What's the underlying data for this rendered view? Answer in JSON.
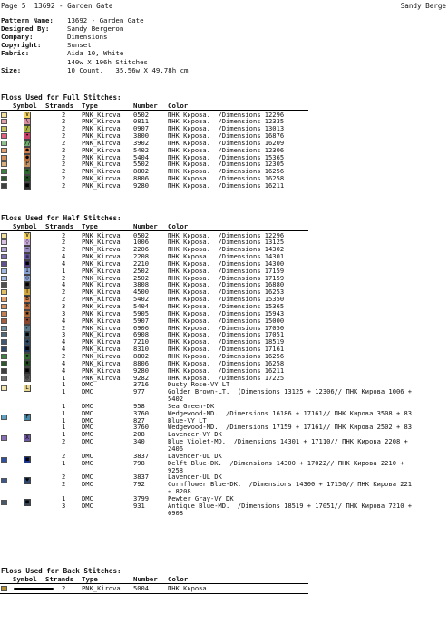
{
  "header": {
    "left": "Page 5  13692 - Garden Gate",
    "right": "Sandy Berge"
  },
  "meta": [
    {
      "label": "Pattern Name:",
      "value": "13692 - Garden Gate"
    },
    {
      "label": "Designed By:",
      "value": "Sandy Bergeron"
    },
    {
      "label": "Company:",
      "value": "Dimensions"
    },
    {
      "label": "Copyright:",
      "value": "Sunset"
    },
    {
      "label": "Fabric:",
      "value": "Aida 10, White"
    },
    {
      "label": "",
      "value": "140w X 196h Stitches"
    },
    {
      "label": "Size:",
      "value": "10 Count,   35.56w X 49.78h cm"
    }
  ],
  "columns": {
    "symbol": "Symbol",
    "strands": "Strands",
    "type": "Type",
    "number": "Number",
    "color": "Color"
  },
  "full": {
    "title": "Floss Used for Full Stitches:",
    "rows": [
      {
        "sw": "#f0e0a0",
        "sym": "#f0d060",
        "g": "V",
        "strands": "2",
        "type": "PNK_Kirova",
        "number": "0502",
        "color": "ПНК Кирова.  /Dimensions 12296"
      },
      {
        "sw": "#e0a0a8",
        "sym": "#d890a0",
        "g": "\\",
        "strands": "2",
        "type": "PNK_Kirova",
        "number": "0811",
        "color": "ПНК Кирова.  /Dimensions 12335"
      },
      {
        "sw": "#c0c060",
        "sym": "#a8b040",
        "g": "/",
        "strands": "2",
        "type": "PNK_Kirova",
        "number": "0907",
        "color": "ПНК Кирова.  /Dimensions 13013"
      },
      {
        "sw": "#e06080",
        "sym": "#c84068",
        "g": "•",
        "strands": "2",
        "type": "PNK_Kirova",
        "number": "3800",
        "color": "ПНК Кирова.  /Dimensions 16876"
      },
      {
        "sw": "#90c090",
        "sym": "#70a870",
        "g": "//",
        "strands": "2",
        "type": "PNK_Kirova",
        "number": "3902",
        "color": "ПНК Кирова.  /Dimensions 16209"
      },
      {
        "sw": "#e0a070",
        "sym": "#d08050",
        "g": "●",
        "strands": "2",
        "type": "PNK_Kirova",
        "number": "5402",
        "color": "ПНК Кирова.  /Dimensions 12306"
      },
      {
        "sw": "#d09060",
        "sym": "#b87040",
        "g": "●",
        "strands": "2",
        "type": "PNK_Kirova",
        "number": "5404",
        "color": "ПНК Кирова.  /Dimensions 15365"
      },
      {
        "sw": "#d8b080",
        "sym": "#c09060",
        "g": "P",
        "strands": "2",
        "type": "PNK_Kirova",
        "number": "5502",
        "color": "ПНК Кирова.  /Dimensions 12305"
      },
      {
        "sw": "#408040",
        "sym": "#306830",
        "g": "+",
        "strands": "2",
        "type": "PNK_Kirova",
        "number": "8802",
        "color": "ПНК Кирова.  /Dimensions 16256"
      },
      {
        "sw": "#305830",
        "sym": "#204820",
        "g": "•",
        "strands": "2",
        "type": "PNK_Kirova",
        "number": "8806",
        "color": "ПНК Кирова.  /Dimensions 16258"
      },
      {
        "sw": "#404040",
        "sym": "#303030",
        "g": "■",
        "strands": "2",
        "type": "PNK_Kirova",
        "number": "9280",
        "color": "ПНК Кирова.  /Dimensions 16211"
      }
    ]
  },
  "half": {
    "title": "Floss Used for Half Stitches:",
    "rows": [
      {
        "sw": "#f0e0a0",
        "sym": "#f0d060",
        "g": "V",
        "strands": "2",
        "type": "PNK_Kirova",
        "number": "0502",
        "color": "ПНК Кирова.  /Dimensions 12296"
      },
      {
        "sw": "#d8c0e0",
        "sym": "#c8a8d8",
        "g": "◊",
        "strands": "2",
        "type": "PNK_Kirova",
        "number": "1006",
        "color": "ПНК Кирова.  /Dimensions 13125"
      },
      {
        "sw": "#b0a0d0",
        "sym": "#9888c0",
        "g": "=",
        "strands": "2",
        "type": "PNK_Kirova",
        "number": "2206",
        "color": "ПНК Кирова.  /Dimensions 14302"
      },
      {
        "sw": "#8070b0",
        "sym": "#6858a0",
        "g": "≡",
        "strands": "4",
        "type": "PNK_Kirova",
        "number": "2208",
        "color": "ПНК Кирова.  /Dimensions 14301"
      },
      {
        "sw": "#605090",
        "sym": "#504080",
        "g": "■",
        "strands": "4",
        "type": "PNK_Kirova",
        "number": "2210",
        "color": "ПНК Кирова.  /Dimensions 14300"
      },
      {
        "sw": "#a0b8e0",
        "sym": "#88a0d0",
        "g": "I",
        "strands": "1",
        "type": "PNK_Kirova",
        "number": "2502",
        "color": "ПНК Кирова.  /Dimensions 17159"
      },
      {
        "sw": "#a0b8e0",
        "sym": "#88a0d0",
        "g": "○",
        "strands": "2",
        "type": "PNK_Kirova",
        "number": "2502",
        "color": "ПНК Кирова.  /Dimensions 17159"
      },
      {
        "sw": "#505050",
        "sym": "#404040",
        "g": "■",
        "strands": "4",
        "type": "PNK_Kirova",
        "number": "3808",
        "color": "ПНК Кирова.  /Dimensions 16880"
      },
      {
        "sw": "#e0c060",
        "sym": "#d0a840",
        "g": "T",
        "strands": "2",
        "type": "PNK_Kirova",
        "number": "4500",
        "color": "ПНК Кирова.  /Dimensions 16253"
      },
      {
        "sw": "#e0a070",
        "sym": "#d08050",
        "g": "B",
        "strands": "2",
        "type": "PNK_Kirova",
        "number": "5402",
        "color": "ПНК Кирова.  /Dimensions 15350"
      },
      {
        "sw": "#d09060",
        "sym": "#b87040",
        "g": "8",
        "strands": "3",
        "type": "PNK_Kirova",
        "number": "5404",
        "color": "ПНК Кирова.  /Dimensions 15365"
      },
      {
        "sw": "#c08050",
        "sym": "#a86838",
        "g": "✱",
        "strands": "3",
        "type": "PNK_Kirova",
        "number": "5905",
        "color": "ПНК Кирова.  /Dimensions 15943"
      },
      {
        "sw": "#a06040",
        "sym": "#884830",
        "g": "•",
        "strands": "4",
        "type": "PNK_Kirova",
        "number": "5907",
        "color": "ПНК Кирова.  /Dimensions 15000"
      },
      {
        "sw": "#7090a0",
        "sym": "#587888",
        "g": "✓",
        "strands": "2",
        "type": "PNK_Kirova",
        "number": "6906",
        "color": "ПНК Кирова.  /Dimensions 17050"
      },
      {
        "sw": "#506878",
        "sym": "#405868",
        "g": "■",
        "strands": "3",
        "type": "PNK_Kirova",
        "number": "6908",
        "color": "ПНК Кирова.  /Dimensions 17051"
      },
      {
        "sw": "#405870",
        "sym": "#304860",
        "g": "✚",
        "strands": "4",
        "type": "PNK_Kirova",
        "number": "7210",
        "color": "ПНК Кирова.  /Dimensions 18519"
      },
      {
        "sw": "#304868",
        "sym": "#203858",
        "g": "■",
        "strands": "4",
        "type": "PNK_Kirova",
        "number": "8310",
        "color": "ПНК Кирова.  /Dimensions 17161"
      },
      {
        "sw": "#408040",
        "sym": "#306830",
        "g": "▪",
        "strands": "2",
        "type": "PNK_Kirova",
        "number": "8802",
        "color": "ПНК Кирова.  /Dimensions 16256"
      },
      {
        "sw": "#305830",
        "sym": "#204820",
        "g": "♦",
        "strands": "4",
        "type": "PNK_Kirova",
        "number": "8806",
        "color": "ПНК Кирова.  /Dimensions 16258"
      },
      {
        "sw": "#404040",
        "sym": "#303030",
        "g": "■",
        "strands": "4",
        "type": "PNK_Kirova",
        "number": "9280",
        "color": "ПНК Кирова.  /Dimensions 16211"
      },
      {
        "sw": "#707070",
        "sym": "#606060",
        "g": "◎",
        "strands": "1",
        "type": "PNK_Kirova",
        "number": "9282",
        "color": "ПНК Кирова.  /Dimensions 17225"
      }
    ]
  },
  "blends": [
    {
      "sw": "#f0e8b0",
      "sym": "#e8d890",
      "g": "L",
      "lines": [
        {
          "strands": "1",
          "type": "DMC",
          "number": "3716",
          "color": "Dusty Rose-VY LT"
        },
        {
          "strands": "1",
          "type": "DMC",
          "number": "977",
          "color": "Golden Brown-LT.  (Dimensions 13125 + 12306// ПНК Кирова 1006 +"
        },
        {
          "strands": "",
          "type": "",
          "number": "",
          "color": "5402"
        }
      ]
    },
    {
      "sw": "",
      "sym": "",
      "g": "",
      "lines": [
        {
          "strands": "1",
          "type": "DMC",
          "number": "958",
          "color": "Sea Green-DK"
        }
      ]
    },
    {
      "sw": "#60a0c0",
      "sym": "#4888a8",
      "g": "F",
      "lines": [
        {
          "strands": "1",
          "type": "DMC",
          "number": "3760",
          "color": "Wedgewood-MD.  /Dimensions 16186 + 17161// ПНК Кирова 3508 + 83"
        },
        {
          "strands": "1",
          "type": "DMC",
          "number": "827",
          "color": "Blue-VY LT"
        },
        {
          "strands": "1",
          "type": "DMC",
          "number": "3760",
          "color": "Wedgewood-MD.  /Dimensions 17159 + 17161// ПНК Кирова 2502 + 83"
        }
      ]
    },
    {
      "sw": "#8870b8",
      "sym": "#7058a0",
      "g": "X",
      "lines": [
        {
          "strands": "1",
          "type": "DMC",
          "number": "208",
          "color": "Lavender-VY DK"
        },
        {
          "strands": "2",
          "type": "DMC",
          "number": "340",
          "color": "Blue Violet-MD.  /Dimensions 14301 + 17110// ПНК Кирова 2208 +"
        },
        {
          "strands": "",
          "type": "",
          "number": "",
          "color": "2406"
        }
      ]
    },
    {
      "sw": "#3050a0",
      "sym": "#203890",
      "g": "■",
      "lines": [
        {
          "strands": "2",
          "type": "DMC",
          "number": "3837",
          "color": "Lavender-UL DK"
        },
        {
          "strands": "1",
          "type": "DMC",
          "number": "798",
          "color": "Delft Blue-DK.  /Dimensions 14300 + 17022// ПНК Кирова 2210 +"
        },
        {
          "strands": "",
          "type": "",
          "number": "",
          "color": "9258"
        }
      ]
    },
    {
      "sw": "#405880",
      "sym": "#304870",
      "g": "♥",
      "lines": [
        {
          "strands": "2",
          "type": "DMC",
          "number": "3837",
          "color": "Lavender-UL DK"
        },
        {
          "strands": "2",
          "type": "DMC",
          "number": "792",
          "color": "Cornflower Blue-DK.  /Dimensions 14300 + 17150// ПНК Кирова 221"
        },
        {
          "strands": "",
          "type": "",
          "number": "",
          "color": "+ 8208"
        }
      ]
    },
    {
      "sw": "#485868",
      "sym": "#384858",
      "g": "■",
      "lines": [
        {
          "strands": "1",
          "type": "DMC",
          "number": "3799",
          "color": "Pewter Gray-VY DK"
        },
        {
          "strands": "3",
          "type": "DMC",
          "number": "931",
          "color": "Antique Blue-MD.  /Dimensions 18519 + 17051// ПНК Кирова 7210 +"
        },
        {
          "strands": "",
          "type": "",
          "number": "",
          "color": "6908"
        }
      ]
    }
  ],
  "back": {
    "title": "Floss Used for Back Stitches:",
    "rows": [
      {
        "sw": "#b09030",
        "strands": "2",
        "type": "PNK_Kirova",
        "number": "5004",
        "color": "ПНК Кирова"
      }
    ]
  }
}
